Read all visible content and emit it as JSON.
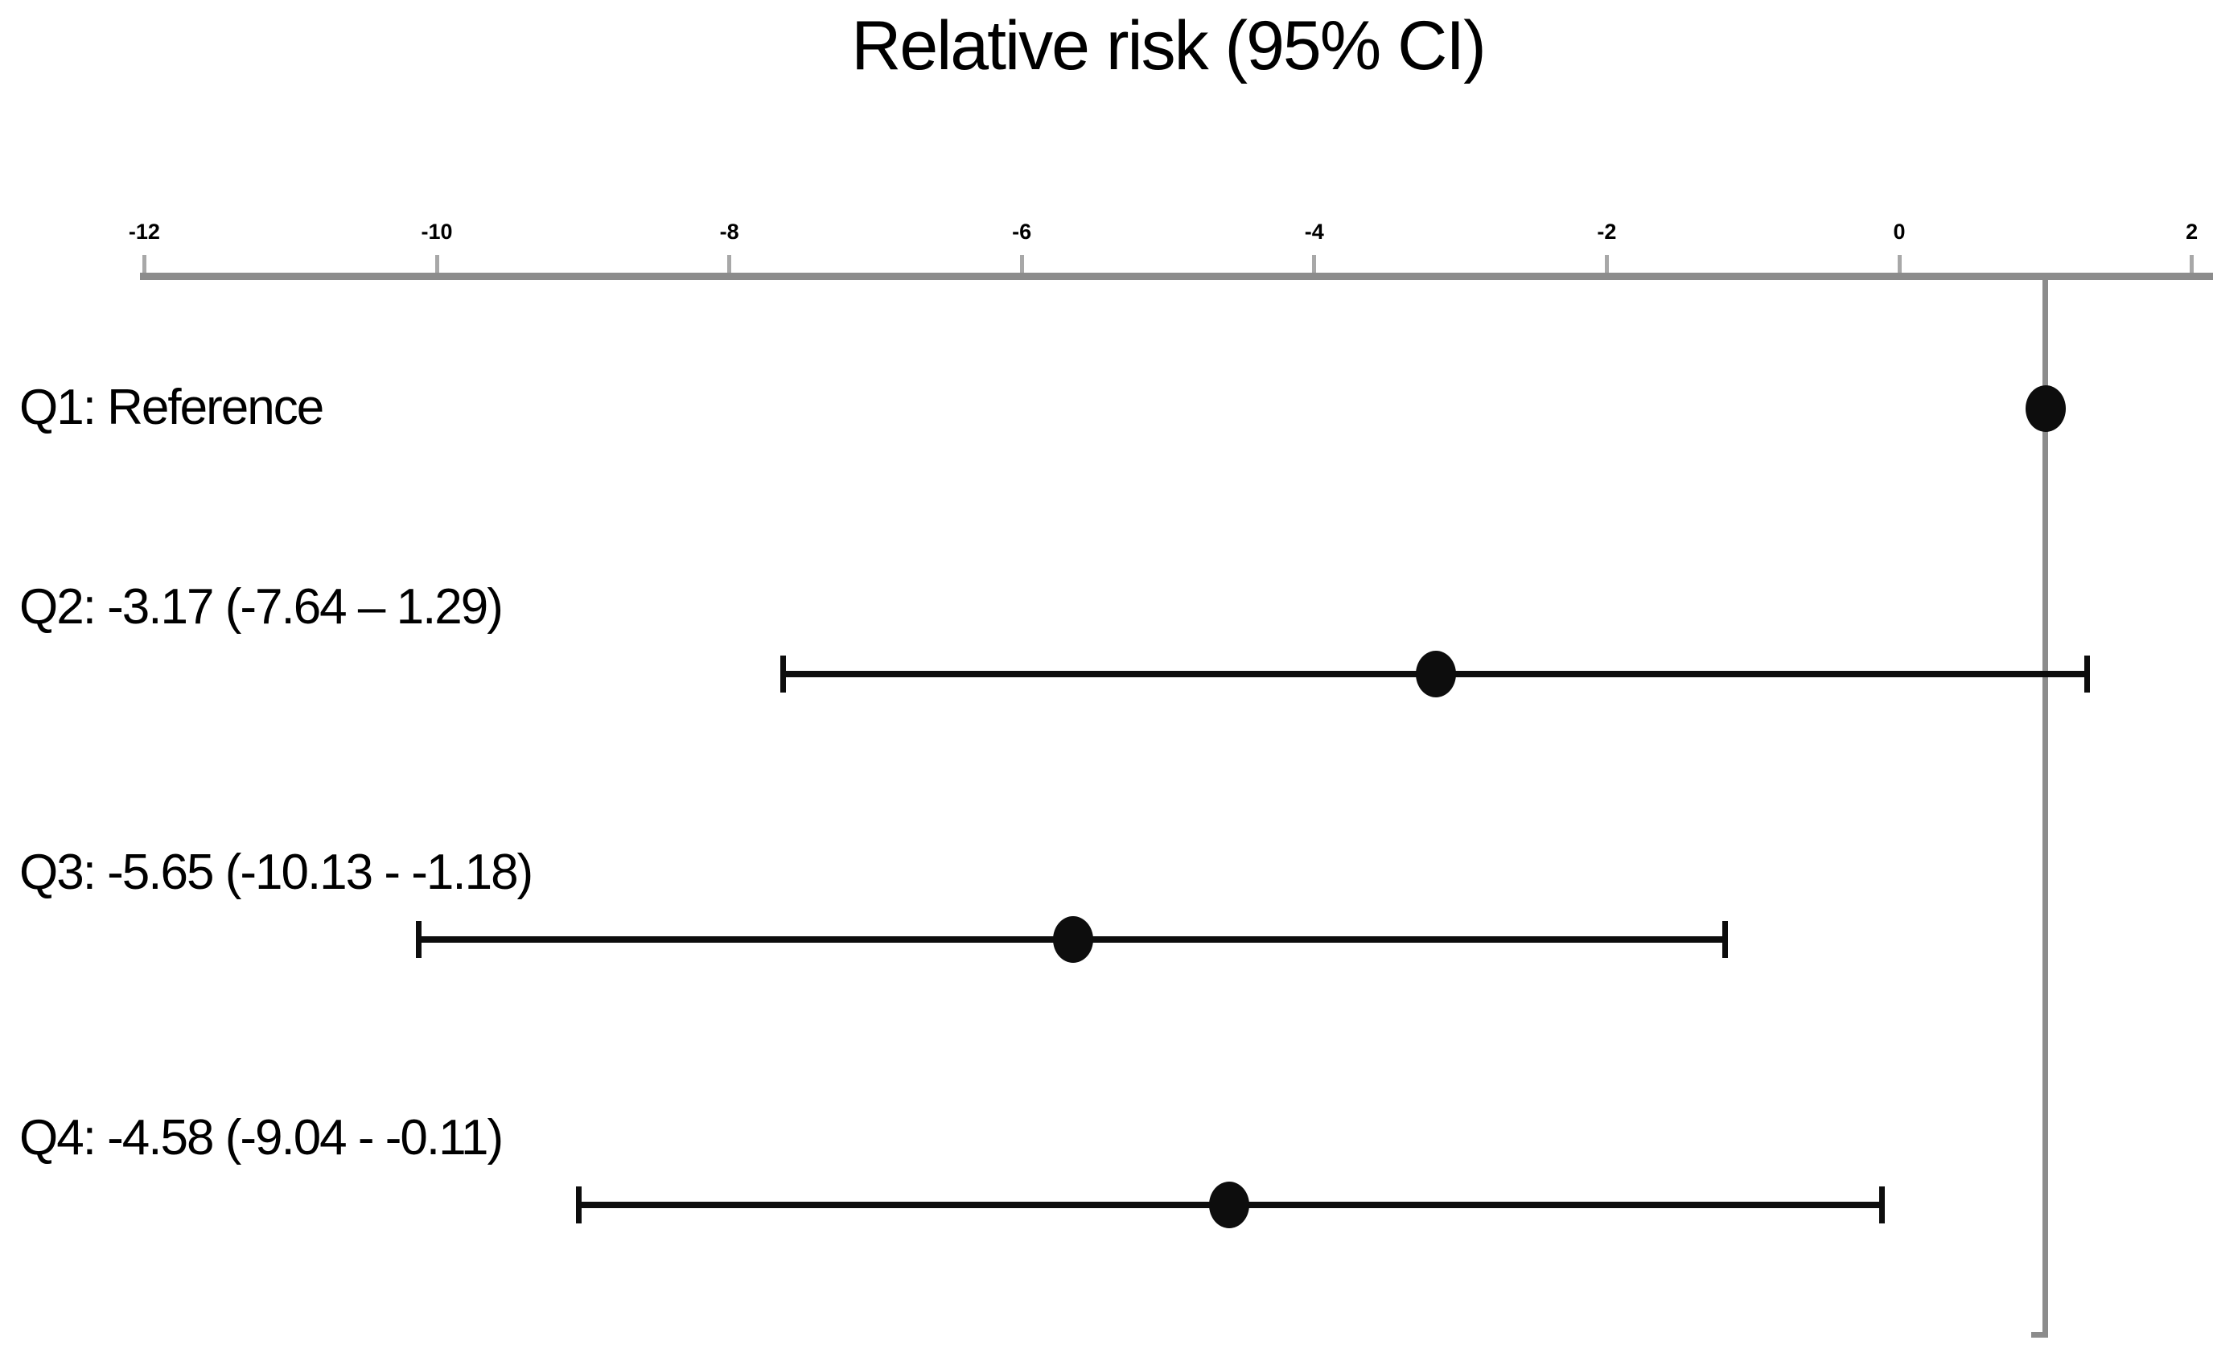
{
  "chart_data": {
    "type": "scatter",
    "subtype": "forest-plot",
    "title": "Relative risk (95% CI)",
    "orientation": "horizontal",
    "x_axis": {
      "position": "top",
      "min": -12,
      "max": 2,
      "tick_step": 2,
      "tick_labels": [
        "-12",
        "-10",
        "-8",
        "-6",
        "-4",
        "-2",
        "0",
        "2"
      ]
    },
    "reference_line_x": 1,
    "grid": false,
    "legend": "none",
    "rows": [
      {
        "label": "Q1: Reference",
        "estimate": 1,
        "ci_low": null,
        "ci_high": null
      },
      {
        "label": "Q2: -3.17 (-7.64 – 1.29)",
        "estimate": -3.17,
        "ci_low": -7.64,
        "ci_high": 1.29
      },
      {
        "label": "Q3: -5.65 (-10.13 - -1.18)",
        "estimate": -5.65,
        "ci_low": -10.13,
        "ci_high": -1.18
      },
      {
        "label": "Q4: -4.58 (-9.04 - -0.11)",
        "estimate": -4.58,
        "ci_low": -9.04,
        "ci_high": -0.11
      }
    ],
    "colors": {
      "marker": "#0d0d0d",
      "ci_line": "#0d0d0d",
      "axis_line": "#8c8c8c",
      "tick": "#a8a8a8",
      "reference_line": "#8c8c8c",
      "text": "#000000"
    }
  }
}
